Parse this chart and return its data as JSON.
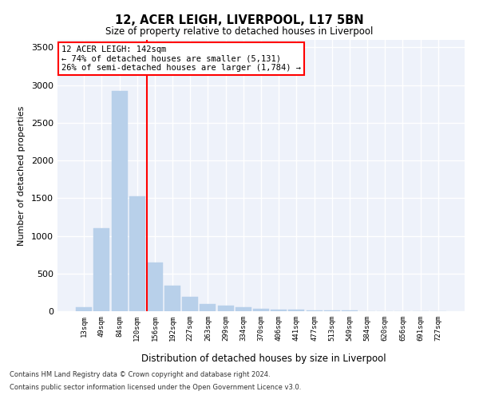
{
  "title1": "12, ACER LEIGH, LIVERPOOL, L17 5BN",
  "title2": "Size of property relative to detached houses in Liverpool",
  "xlabel": "Distribution of detached houses by size in Liverpool",
  "ylabel": "Number of detached properties",
  "categories": [
    "13sqm",
    "49sqm",
    "84sqm",
    "120sqm",
    "156sqm",
    "192sqm",
    "227sqm",
    "263sqm",
    "299sqm",
    "334sqm",
    "370sqm",
    "406sqm",
    "441sqm",
    "477sqm",
    "513sqm",
    "549sqm",
    "584sqm",
    "620sqm",
    "656sqm",
    "691sqm",
    "727sqm"
  ],
  "values": [
    55,
    1100,
    2920,
    1520,
    650,
    340,
    190,
    95,
    70,
    55,
    35,
    25,
    20,
    15,
    10,
    8,
    5,
    3,
    2,
    2,
    1
  ],
  "bar_color": "#b8d0ea",
  "bar_edgecolor": "#b8d0ea",
  "vline_color": "red",
  "vline_pos": 3.57,
  "ylim": [
    0,
    3600
  ],
  "yticks": [
    0,
    500,
    1000,
    1500,
    2000,
    2500,
    3000,
    3500
  ],
  "annotation_text": "12 ACER LEIGH: 142sqm\n← 74% of detached houses are smaller (5,131)\n26% of semi-detached houses are larger (1,784) →",
  "footnote1": "Contains HM Land Registry data © Crown copyright and database right 2024.",
  "footnote2": "Contains public sector information licensed under the Open Government Licence v3.0.",
  "bg_color": "#eef2fa",
  "grid_color": "#ffffff"
}
